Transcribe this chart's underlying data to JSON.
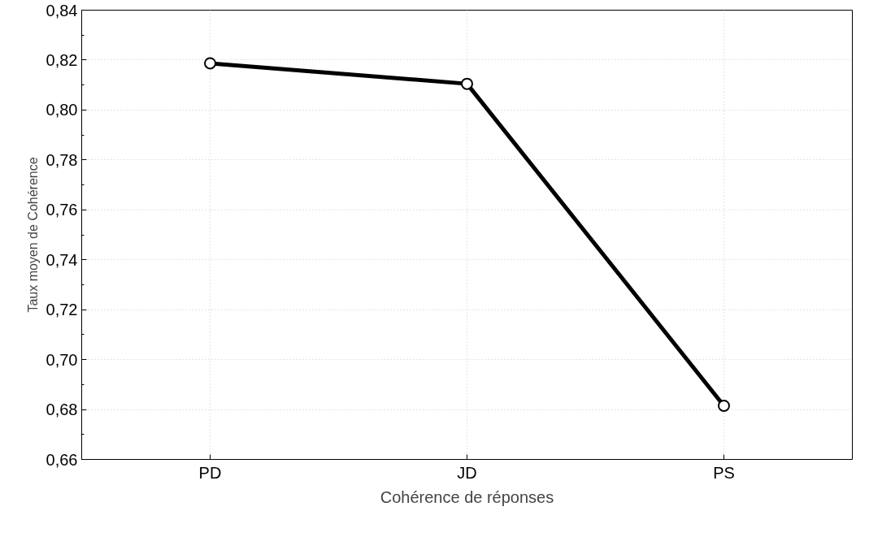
{
  "chart_data": {
    "type": "line",
    "xlabel": "Cohérence de réponses",
    "ylabel": "Taux moyen de Cohérence",
    "categories": [
      "PD",
      "JD",
      "PS"
    ],
    "series": [
      {
        "color": "#000000",
        "values": [
          0.8187,
          0.8105,
          0.6815
        ]
      }
    ],
    "ylim": [
      0.66,
      0.84
    ],
    "yticks": [
      {
        "value": 0.66,
        "label": "0,66"
      },
      {
        "value": 0.68,
        "label": "0,68"
      },
      {
        "value": 0.7,
        "label": "0,70"
      },
      {
        "value": 0.72,
        "label": "0,72"
      },
      {
        "value": 0.74,
        "label": "0,74"
      },
      {
        "value": 0.76,
        "label": "0,76"
      },
      {
        "value": 0.78,
        "label": "0,78"
      },
      {
        "value": 0.8,
        "label": "0,80"
      },
      {
        "value": 0.82,
        "label": "0,82"
      },
      {
        "value": 0.84,
        "label": "0,84"
      }
    ],
    "grid": true,
    "marker": "circle",
    "line_style": "solid"
  }
}
